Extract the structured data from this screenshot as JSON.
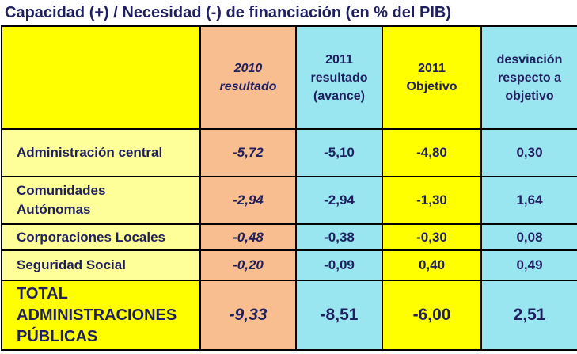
{
  "title": "Capacidad (+) / Necesidad (-) de financiación (en % del PIB)",
  "headers": {
    "col1": [
      "2010",
      "resultado"
    ],
    "col2": [
      "2011",
      "resultado",
      "(avance)"
    ],
    "col3": [
      "2011",
      "Objetivo"
    ],
    "col4": [
      "desviación",
      "respecto a",
      "objetivo"
    ]
  },
  "rows": [
    {
      "label": [
        "Administración central"
      ],
      "v2010": "-5,72",
      "v2011": "-5,10",
      "obj": "-4,80",
      "desv": "0,30"
    },
    {
      "label": [
        "Comunidades",
        "Autónomas"
      ],
      "v2010": "-2,94",
      "v2011": "-2,94",
      "obj": "-1,30",
      "desv": "1,64"
    },
    {
      "label": [
        "Corporaciones Locales"
      ],
      "v2010": "-0,48",
      "v2011": "-0,38",
      "obj": "-0,30",
      "desv": "0,08"
    },
    {
      "label": [
        "Seguridad Social"
      ],
      "v2010": "-0,20",
      "v2011": "-0,09",
      "obj": "0,40",
      "desv": "0,49"
    }
  ],
  "total": {
    "label": [
      "TOTAL",
      "ADMINISTRACIONES",
      "PÚBLICAS"
    ],
    "v2010": "-9,33",
    "v2011": "-8,51",
    "obj": "-6,00",
    "desv": "2,51"
  },
  "colors": {
    "yellow": "#ffff00",
    "light_yellow": "#ffff99",
    "peach": "#f9be8f",
    "cyan": "#99e6f0",
    "text": "#1f1f5f"
  }
}
